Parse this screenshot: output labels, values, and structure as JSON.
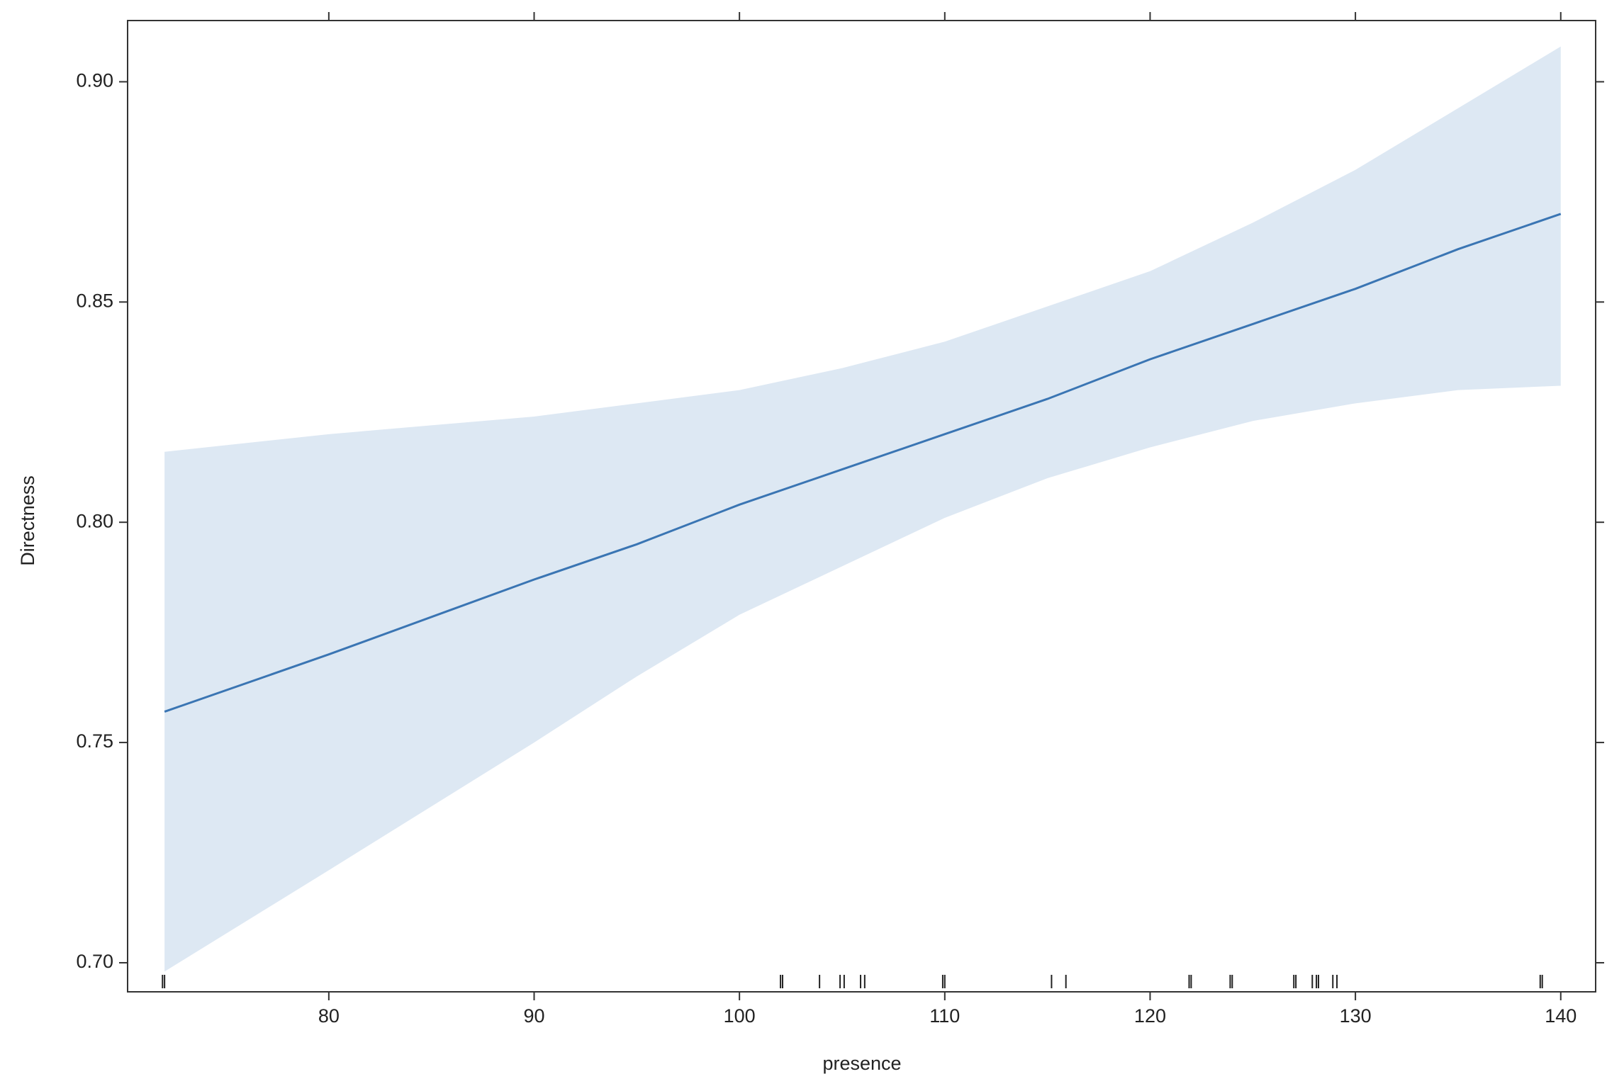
{
  "chart_data": {
    "type": "line",
    "x_label": "presence",
    "y_label": "Directness",
    "x": [
      72,
      80,
      90,
      95,
      100,
      105,
      110,
      115,
      120,
      125,
      130,
      135,
      140
    ],
    "values": [
      0.757,
      0.77,
      0.787,
      0.795,
      0.804,
      0.812,
      0.82,
      0.828,
      0.837,
      0.845,
      0.853,
      0.862,
      0.87
    ],
    "upper": [
      0.816,
      0.82,
      0.824,
      0.827,
      0.83,
      0.835,
      0.841,
      0.849,
      0.857,
      0.868,
      0.88,
      0.894,
      0.908
    ],
    "lower": [
      0.698,
      0.721,
      0.75,
      0.765,
      0.779,
      0.79,
      0.801,
      0.81,
      0.817,
      0.823,
      0.827,
      0.83,
      0.831
    ],
    "rug": [
      71.9,
      72.0,
      102.0,
      102.1,
      103.9,
      104.9,
      105.1,
      105.9,
      106.1,
      109.9,
      110.0,
      115.2,
      115.9,
      121.9,
      122.0,
      123.9,
      124.0,
      127.0,
      127.1,
      127.9,
      128.1,
      128.2,
      128.9,
      129.1,
      139.0,
      139.1
    ],
    "color": "#3a75b3",
    "band_color": "#dde8f3",
    "xlim": [
      70.2,
      141.7
    ],
    "ylim": [
      0.6934,
      0.9139
    ],
    "xticks": [
      80,
      90,
      100,
      110,
      120,
      130,
      140
    ],
    "yticks": [
      {
        "value": 0.7,
        "label": "0.70"
      },
      {
        "value": 0.75,
        "label": "0.75"
      },
      {
        "value": 0.8,
        "label": "0.80"
      },
      {
        "value": 0.85,
        "label": "0.85"
      },
      {
        "value": 0.9,
        "label": "0.90"
      }
    ],
    "grid": false
  }
}
